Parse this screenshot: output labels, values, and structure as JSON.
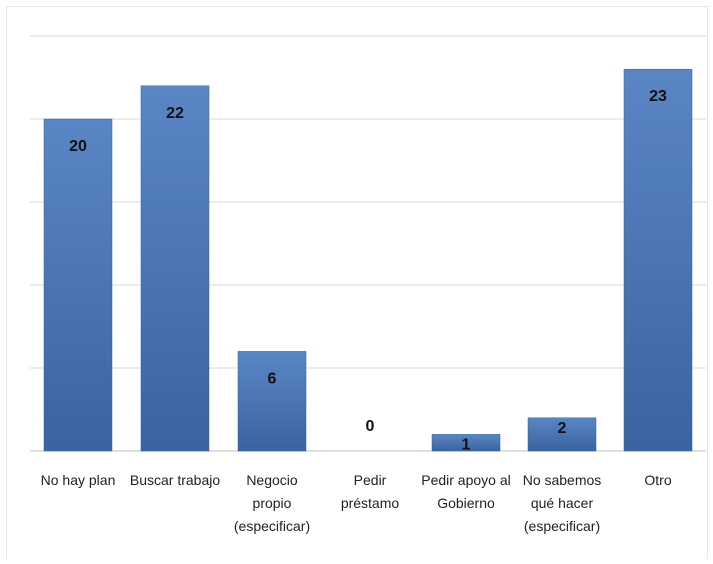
{
  "chart_data": {
    "type": "bar",
    "categories": [
      [
        "No hay plan"
      ],
      [
        "Buscar trabajo"
      ],
      [
        "Negocio",
        "propio",
        "(especificar)"
      ],
      [
        "Pedir",
        "préstamo"
      ],
      [
        "Pedir apoyo al",
        "Gobierno"
      ],
      [
        "No sabemos",
        "qué hacer",
        "(especificar)"
      ],
      [
        "Otro"
      ]
    ],
    "values": [
      20,
      22,
      6,
      0,
      1,
      2,
      23
    ],
    "data_labels": [
      "20",
      "22",
      "6",
      "0",
      "1",
      "2",
      "23"
    ],
    "title": "",
    "xlabel": "",
    "ylabel": "",
    "ylim": [
      0,
      25
    ],
    "gridlines": [
      0,
      5,
      10,
      15,
      20,
      25
    ],
    "grid": true,
    "legend": "none",
    "colors": {
      "bar_top": "#5b86c5",
      "bar_bottom": "#3a63a0",
      "bar_edge": "#365e9a"
    }
  }
}
